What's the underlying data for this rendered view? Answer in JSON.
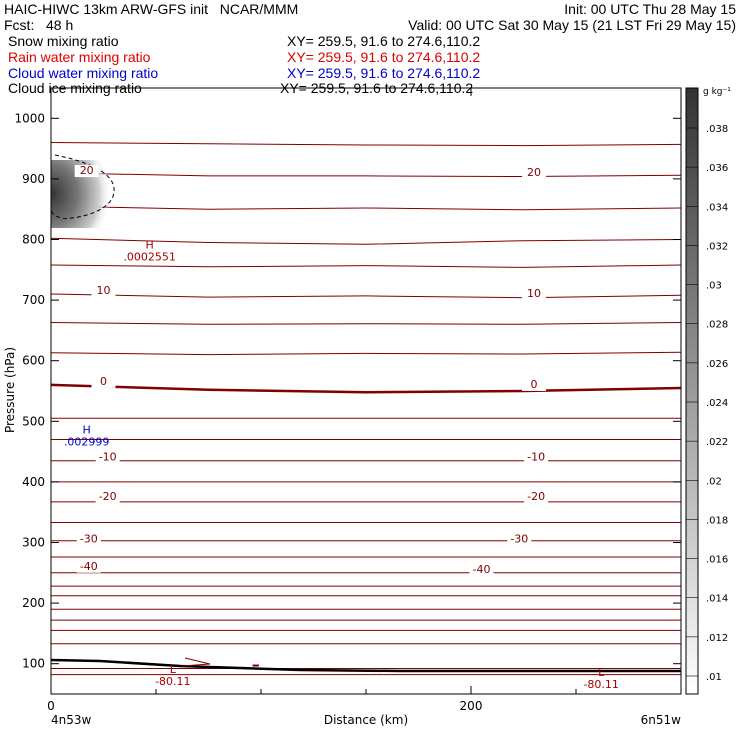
{
  "header": {
    "title_left": "HAIC-HIWC 13km ARW-GFS init   NCAR/MMM",
    "init": "Init: 00 UTC Thu 28 May 15",
    "fcst": "Fcst:   48 h",
    "valid": "Valid: 00 UTC Sat 30 May 15 (21 LST Fri 29 May 15)"
  },
  "fields": [
    {
      "name": "Snow mixing ratio",
      "xy": "XY= 259.5, 91.6 to 274.6,110.2",
      "color": "#000000"
    },
    {
      "name": "Rain water mixing ratio",
      "xy": "XY= 259.5, 91.6 to 274.6,110.2",
      "color": "#dd0000"
    },
    {
      "name": "Cloud water mixing ratio",
      "xy": "XY= 259.5, 91.6 to 274.6,110.2",
      "color": "#0000cc"
    },
    {
      "name": "Cloud ice mixing ratio",
      "xy": "XY= 259.5, 91.6 to 274.6,110.2",
      "color": "#000000"
    }
  ],
  "chart_data": {
    "type": "contour",
    "xlabel": "Distance (km)",
    "ylabel": "Pressure (hPa)",
    "x_ticks": [
      0,
      200
    ],
    "y_ticks": [
      100,
      200,
      300,
      400,
      500,
      600,
      700,
      800,
      900,
      1000
    ],
    "xlim": [
      0,
      300
    ],
    "ylim": [
      1050,
      50
    ],
    "x_end_labels": [
      "4n53w",
      "6n51w"
    ],
    "temperature_labels": [
      {
        "text": "-40",
        "x": 18,
        "p": 255
      },
      {
        "text": "-40",
        "x": 205,
        "p": 250
      },
      {
        "text": "-30",
        "x": 18,
        "p": 300
      },
      {
        "text": "-30",
        "x": 223,
        "p": 300
      },
      {
        "text": "-20",
        "x": 27,
        "p": 370
      },
      {
        "text": "-20",
        "x": 231,
        "p": 370
      },
      {
        "text": "-10",
        "x": 27,
        "p": 435
      },
      {
        "text": "-10",
        "x": 231,
        "p": 435
      },
      {
        "text": "0",
        "x": 25,
        "p": 560
      },
      {
        "text": "0",
        "x": 230,
        "p": 555
      },
      {
        "text": "10",
        "x": 25,
        "p": 710
      },
      {
        "text": "10",
        "x": 230,
        "p": 705
      },
      {
        "text": "20",
        "x": 17,
        "p": 908
      },
      {
        "text": "20",
        "x": 230,
        "p": 905
      }
    ],
    "extrema": [
      {
        "type": "L",
        "value": "-80.11",
        "x": 58,
        "p": 85,
        "color": "#aa0000"
      },
      {
        "type": "L",
        "value": "-80.11",
        "x": 262,
        "p": 80,
        "color": "#aa0000"
      },
      {
        "type": "H",
        "value": ".002999",
        "x": 17,
        "p": 480,
        "color": "#0000cc"
      },
      {
        "type": "H",
        "value": ".0002551",
        "x": 47,
        "p": 785,
        "color": "#aa0000"
      }
    ],
    "colorbar": {
      "unit": "g kg⁻¹",
      "ticks": [
        ".038",
        ".036",
        ".034",
        ".032",
        ".03",
        ".028",
        ".026",
        ".024",
        ".022",
        ".02",
        ".018",
        ".016",
        ".014",
        ".012",
        ".01"
      ]
    }
  }
}
